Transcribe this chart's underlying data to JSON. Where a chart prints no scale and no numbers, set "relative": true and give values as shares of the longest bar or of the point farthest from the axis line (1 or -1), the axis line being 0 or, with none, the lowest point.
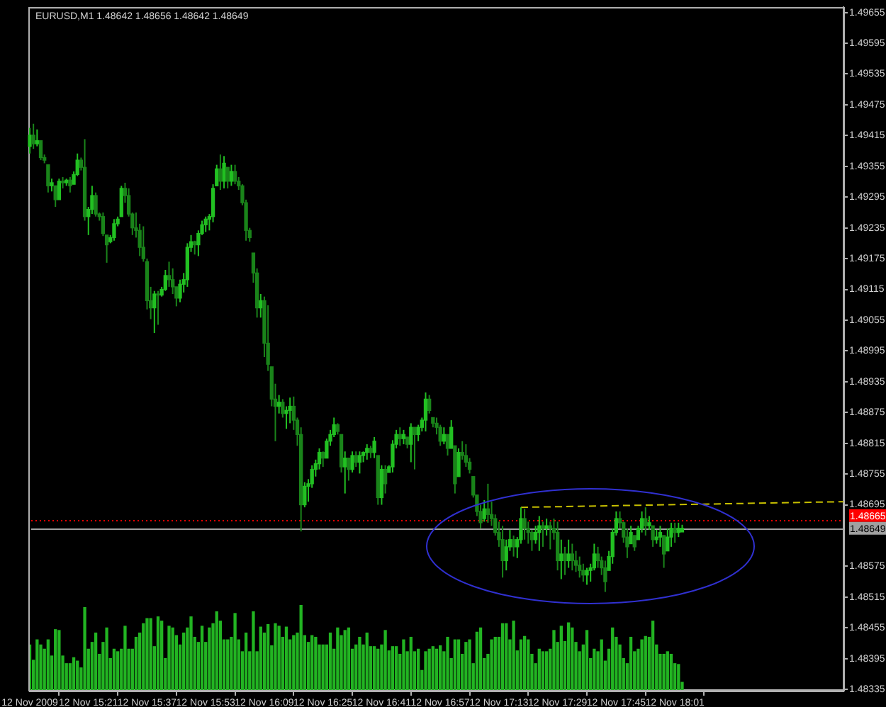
{
  "chart_data": [
    {
      "type": "candlestick",
      "title": "EURUSD,M1 1.48642 1.48656 1.48642 1.48649",
      "categories": [
        "12 Nov 2009",
        null,
        null,
        null,
        null,
        null,
        null,
        null,
        null,
        null,
        null,
        null,
        null,
        null,
        null,
        null,
        "12 Nov 15:21",
        null,
        null,
        null,
        null,
        null,
        null,
        null,
        null,
        null,
        null,
        null,
        null,
        null,
        null,
        null,
        "12 Nov 15:37",
        null,
        null,
        null,
        null,
        null,
        null,
        null,
        null,
        null,
        null,
        null,
        null,
        null,
        null,
        null,
        "12 Nov 15:53",
        null,
        null,
        null,
        null,
        null,
        null,
        null,
        null,
        null,
        null,
        null,
        null,
        null,
        null,
        null,
        "12 Nov 16:09",
        null,
        null,
        null,
        null,
        null,
        null,
        null,
        null,
        null,
        null,
        null,
        null,
        null,
        null,
        null,
        "12 Nov 16:25",
        null,
        null,
        null,
        null,
        null,
        null,
        null,
        null,
        null,
        null,
        null,
        null,
        null,
        null,
        null,
        "12 Nov 16:41",
        null,
        null,
        null,
        null,
        null,
        null,
        null,
        null,
        null,
        null,
        null,
        null,
        null,
        null,
        null,
        "12 Nov 16:57",
        null,
        null,
        null,
        null,
        null,
        null,
        null,
        null,
        null,
        null,
        null,
        null,
        null,
        null,
        null,
        "12 Nov 17:13",
        null,
        null,
        null,
        null,
        null,
        null,
        null,
        null,
        null,
        null,
        null,
        null,
        null,
        null,
        null,
        "12 Nov 17:29",
        null,
        null,
        null,
        null,
        null,
        null,
        null,
        null,
        null,
        null,
        null,
        null,
        null,
        null,
        null,
        "12 Nov 17:45",
        null,
        null,
        null,
        null,
        null,
        null,
        null,
        null,
        null,
        null,
        null,
        null,
        null,
        null,
        null,
        "12 Nov 18:01",
        null,
        null,
        null,
        null,
        null,
        null,
        null,
        null,
        null,
        null,
        null,
        null,
        null,
        null,
        null,
        null,
        null,
        null,
        null,
        null,
        null,
        null,
        null,
        null,
        null,
        null,
        null,
        null,
        null,
        null,
        null,
        null,
        null,
        null,
        null,
        null,
        null,
        null,
        null,
        null,
        null,
        null,
        null,
        null,
        null,
        null
      ],
      "ohlc": [
        [
          1.49394,
          1.4943,
          1.4938,
          1.49416
        ],
        [
          1.49416,
          1.49438,
          1.49389,
          1.49399
        ],
        [
          1.49399,
          1.49427,
          1.49394,
          1.49405
        ],
        [
          1.49405,
          1.49405,
          1.49367,
          1.49372
        ],
        [
          1.49372,
          1.49378,
          1.49361,
          1.49367
        ],
        [
          1.49358,
          1.49358,
          1.49304,
          1.49317
        ],
        [
          1.49317,
          1.49331,
          1.49306,
          1.49323
        ],
        [
          1.49317,
          1.49317,
          1.49276,
          1.4929
        ],
        [
          1.4929,
          1.49331,
          1.4929,
          1.49326
        ],
        [
          1.49326,
          1.49334,
          1.49312,
          1.49323
        ],
        [
          1.49323,
          1.49331,
          1.49317,
          1.49328
        ],
        [
          1.49328,
          1.49334,
          1.49304,
          1.49317
        ],
        [
          1.4932,
          1.49345,
          1.4932,
          1.49339
        ],
        [
          1.49339,
          1.4938,
          1.49336,
          1.49367
        ],
        [
          1.49367,
          1.49372,
          1.49347,
          1.49353
        ],
        [
          1.49353,
          1.49408,
          1.49249,
          1.49257
        ],
        [
          1.49257,
          1.49276,
          1.49221,
          1.49271
        ],
        [
          1.49271,
          1.49317,
          1.49262,
          1.49298
        ],
        [
          1.49298,
          1.49304,
          1.49257,
          1.49262
        ],
        [
          1.49262,
          1.49265,
          1.49249,
          1.49257
        ],
        [
          1.49257,
          1.49265,
          1.49219,
          1.49224
        ],
        [
          1.49221,
          1.49221,
          1.49167,
          1.49202
        ],
        [
          1.49208,
          1.49221,
          1.49205,
          1.49216
        ],
        [
          1.49216,
          1.49252,
          1.4921,
          1.49243
        ],
        [
          1.49243,
          1.49257,
          1.49238,
          1.49252
        ],
        [
          1.49257,
          1.49317,
          1.49257,
          1.49312
        ],
        [
          1.49312,
          1.49323,
          1.49284,
          1.49298
        ],
        [
          1.49298,
          1.49312,
          1.49257,
          1.49262
        ],
        [
          1.49262,
          1.49265,
          1.49221,
          1.49235
        ],
        [
          1.49235,
          1.49265,
          1.49216,
          1.4923
        ],
        [
          1.4923,
          1.49243,
          1.4918,
          1.49197
        ],
        [
          1.49197,
          1.49238,
          1.49169,
          1.49175
        ],
        [
          1.49169,
          1.49175,
          1.49076,
          1.49093
        ],
        [
          1.49093,
          1.4912,
          1.49057,
          1.49079
        ],
        [
          1.49079,
          1.49112,
          1.4903,
          1.49106
        ],
        [
          1.49106,
          1.49112,
          1.49046,
          1.49104
        ],
        [
          1.49104,
          1.4912,
          1.49101,
          1.49115
        ],
        [
          1.49115,
          1.49153,
          1.49112,
          1.49142
        ],
        [
          1.49142,
          1.49169,
          1.4912,
          1.49134
        ],
        [
          1.49134,
          1.49156,
          1.49106,
          1.4912
        ],
        [
          1.4912,
          1.4912,
          1.49082,
          1.49098
        ],
        [
          1.49098,
          1.49134,
          1.4909,
          1.49125
        ],
        [
          1.49125,
          1.49147,
          1.49109,
          1.49134
        ],
        [
          1.49134,
          1.49205,
          1.4912,
          1.49197
        ],
        [
          1.49197,
          1.49221,
          1.49188,
          1.49208
        ],
        [
          1.49208,
          1.4921,
          1.49183,
          1.49202
        ],
        [
          1.49202,
          1.4923,
          1.4918,
          1.49224
        ],
        [
          1.49224,
          1.49249,
          1.49221,
          1.49241
        ],
        [
          1.49241,
          1.49257,
          1.49227,
          1.49252
        ],
        [
          1.49252,
          1.49262,
          1.4923,
          1.49257
        ],
        [
          1.49257,
          1.4932,
          1.49246,
          1.49312
        ],
        [
          1.49317,
          1.49358,
          1.49317,
          1.4935
        ],
        [
          1.4935,
          1.49378,
          1.49309,
          1.49326
        ],
        [
          1.49326,
          1.49375,
          1.49312,
          1.49361
        ],
        [
          1.49353,
          1.49353,
          1.49312,
          1.49326
        ],
        [
          1.49326,
          1.49358,
          1.49317,
          1.49345
        ],
        [
          1.49345,
          1.49358,
          1.4932,
          1.49326
        ],
        [
          1.49326,
          1.49334,
          1.49309,
          1.49317
        ],
        [
          1.49317,
          1.4932,
          1.49279,
          1.49284
        ],
        [
          1.49284,
          1.4929,
          1.4921,
          1.4923
        ],
        [
          1.4923,
          1.49235,
          1.49208,
          1.49216
        ],
        [
          1.49186,
          1.49186,
          1.49128,
          1.49147
        ],
        [
          1.49147,
          1.49156,
          1.4906,
          1.49079
        ],
        [
          1.49079,
          1.49106,
          1.4906,
          1.49093
        ],
        [
          1.49093,
          1.49101,
          1.48983,
          1.4901
        ],
        [
          1.4901,
          1.49084,
          1.48956,
          1.48969
        ],
        [
          1.48964,
          1.48964,
          1.48887,
          1.48901
        ],
        [
          1.48901,
          1.48931,
          1.48819,
          1.48887
        ],
        [
          1.48887,
          1.48909,
          1.48873,
          1.48895
        ],
        [
          1.48895,
          1.48901,
          1.48865,
          1.48873
        ],
        [
          1.48873,
          1.48887,
          1.48843,
          1.48879
        ],
        [
          1.48879,
          1.48904,
          1.48854,
          1.48887
        ],
        [
          1.48887,
          1.48906,
          1.48841,
          1.4886
        ],
        [
          1.4886,
          1.48865,
          1.4881,
          1.48832
        ],
        [
          1.48832,
          1.48846,
          1.48643,
          1.48695
        ],
        [
          1.48695,
          1.48739,
          1.4869,
          1.48731
        ],
        [
          1.48731,
          1.48745,
          1.48701,
          1.48736
        ],
        [
          1.48736,
          1.48772,
          1.48728,
          1.48764
        ],
        [
          1.48764,
          1.48783,
          1.4875,
          1.48775
        ],
        [
          1.48775,
          1.48805,
          1.48764,
          1.48797
        ],
        [
          1.48797,
          1.48799,
          1.48769,
          1.48786
        ],
        [
          1.48786,
          1.48824,
          1.48786,
          1.48819
        ],
        [
          1.48819,
          1.48841,
          1.4881,
          1.48832
        ],
        [
          1.48832,
          1.48865,
          1.48827,
          1.48851
        ],
        [
          1.48851,
          1.48854,
          1.48832,
          1.48838
        ],
        [
          1.48832,
          1.48832,
          1.48758,
          1.48769
        ],
        [
          1.48769,
          1.48799,
          1.48717,
          1.48786
        ],
        [
          1.48786,
          1.48786,
          1.48742,
          1.48764
        ],
        [
          1.48764,
          1.48799,
          1.48758,
          1.48791
        ],
        [
          1.48791,
          1.48799,
          1.48769,
          1.48778
        ],
        [
          1.48778,
          1.48799,
          1.48756,
          1.48791
        ],
        [
          1.48791,
          1.48799,
          1.48778,
          1.48797
        ],
        [
          1.48797,
          1.48813,
          1.48783,
          1.48805
        ],
        [
          1.48805,
          1.4881,
          1.48786,
          1.48797
        ],
        [
          1.48797,
          1.48827,
          1.48786,
          1.48819
        ],
        [
          1.48791,
          1.48791,
          1.48695,
          1.48709
        ],
        [
          1.48709,
          1.48772,
          1.48695,
          1.48764
        ],
        [
          1.48764,
          1.48772,
          1.48717,
          1.48736
        ],
        [
          1.48758,
          1.48772,
          1.48758,
          1.48769
        ],
        [
          1.48769,
          1.48821,
          1.48758,
          1.48813
        ],
        [
          1.48813,
          1.48841,
          1.48805,
          1.48832
        ],
        [
          1.48832,
          1.48846,
          1.4881,
          1.48824
        ],
        [
          1.48824,
          1.48841,
          1.48813,
          1.48832
        ],
        [
          1.48827,
          1.48827,
          1.48805,
          1.48813
        ],
        [
          1.48813,
          1.48854,
          1.48778,
          1.48846
        ],
        [
          1.48846,
          1.48846,
          1.48764,
          1.48832
        ],
        [
          1.48832,
          1.48851,
          1.48819,
          1.48846
        ],
        [
          1.48846,
          1.48865,
          1.48838,
          1.4886
        ],
        [
          1.4886,
          1.48914,
          1.48838,
          1.48901
        ],
        [
          1.48901,
          1.48909,
          1.48873,
          1.48879
        ],
        [
          1.48865,
          1.48865,
          1.48846,
          1.48854
        ],
        [
          1.48854,
          1.48865,
          1.48832,
          1.48846
        ],
        [
          1.48846,
          1.48851,
          1.4881,
          1.48819
        ],
        [
          1.48819,
          1.48846,
          1.48813,
          1.48832
        ],
        [
          1.48832,
          1.48832,
          1.48791,
          1.48805
        ],
        [
          1.48805,
          1.4886,
          1.48805,
          1.48846
        ],
        [
          1.4881,
          1.4881,
          1.48717,
          1.48736
        ],
        [
          1.4875,
          1.48805,
          1.4875,
          1.48797
        ],
        [
          1.48797,
          1.48819,
          1.48783,
          1.48791
        ],
        [
          1.48791,
          1.48813,
          1.48769,
          1.48778
        ],
        [
          1.48778,
          1.48786,
          1.48756,
          1.48764
        ],
        [
          1.4875,
          1.4875,
          1.48709,
          1.48714
        ],
        [
          1.48714,
          1.48714,
          1.48673,
          1.48682
        ],
        [
          1.48682,
          1.48695,
          1.48649,
          1.4866
        ],
        [
          1.48668,
          1.48704,
          1.48662,
          1.48687
        ],
        [
          1.48687,
          1.48736,
          1.4866,
          1.48676
        ],
        [
          1.48676,
          1.48701,
          1.48654,
          1.48668
        ],
        [
          1.48668,
          1.48676,
          1.48635,
          1.48641
        ],
        [
          1.48641,
          1.48662,
          1.48613,
          1.48627
        ],
        [
          1.48627,
          1.48654,
          1.48553,
          1.48586
        ],
        [
          1.48586,
          1.48627,
          1.48567,
          1.48613
        ],
        [
          1.48613,
          1.48646,
          1.48605,
          1.48627
        ],
        [
          1.48627,
          1.48635,
          1.48594,
          1.48613
        ],
        [
          1.48613,
          1.48632,
          1.48591,
          1.48627
        ],
        [
          1.48627,
          1.4869,
          1.48619,
          1.48668
        ],
        [
          1.48668,
          1.48687,
          1.48627,
          1.48649
        ],
        [
          1.48649,
          1.48662,
          1.48619,
          1.48641
        ],
        [
          1.48641,
          1.48646,
          1.48605,
          1.48627
        ],
        [
          1.48627,
          1.48654,
          1.48619,
          1.48641
        ],
        [
          1.48641,
          1.48673,
          1.48605,
          1.48654
        ],
        [
          1.48654,
          1.48662,
          1.48613,
          1.48649
        ],
        [
          1.48649,
          1.48668,
          1.48635,
          1.48654
        ],
        [
          1.48654,
          1.48662,
          1.48608,
          1.48649
        ],
        [
          1.48649,
          1.48668,
          1.48627,
          1.48641
        ],
        [
          1.48641,
          1.48662,
          1.48567,
          1.48586
        ],
        [
          1.48586,
          1.48627,
          1.4855,
          1.48599
        ],
        [
          1.48599,
          1.48613,
          1.48558,
          1.48586
        ],
        [
          1.48586,
          1.48627,
          1.48572,
          1.48599
        ],
        [
          1.48599,
          1.48619,
          1.48567,
          1.48586
        ],
        [
          1.48586,
          1.48605,
          1.48564,
          1.48577
        ],
        [
          1.48577,
          1.48594,
          1.48553,
          1.48567
        ],
        [
          1.48567,
          1.4858,
          1.48545,
          1.48558
        ],
        [
          1.48558,
          1.48572,
          1.48539,
          1.48567
        ],
        [
          1.48567,
          1.4858,
          1.48545,
          1.48572
        ],
        [
          1.48572,
          1.48619,
          1.48567,
          1.48599
        ],
        [
          1.48599,
          1.48613,
          1.48572,
          1.48586
        ],
        [
          1.48586,
          1.48594,
          1.48558,
          1.48572
        ],
        [
          1.48572,
          1.48586,
          1.48525,
          1.48545
        ],
        [
          1.48567,
          1.48605,
          1.48567,
          1.48594
        ],
        [
          1.48594,
          1.48649,
          1.4858,
          1.48641
        ],
        [
          1.48641,
          1.48682,
          1.48635,
          1.48668
        ],
        [
          1.48668,
          1.48682,
          1.48649,
          1.4866
        ],
        [
          1.4866,
          1.48662,
          1.48621,
          1.48632
        ],
        [
          1.48632,
          1.48649,
          1.48591,
          1.48613
        ],
        [
          1.48619,
          1.48654,
          1.48619,
          1.48641
        ],
        [
          1.48635,
          1.48635,
          1.48605,
          1.48613
        ],
        [
          1.48627,
          1.48654,
          1.48627,
          1.48649
        ],
        [
          1.48649,
          1.48682,
          1.48641,
          1.48668
        ],
        [
          1.48668,
          1.4869,
          1.48635,
          1.48654
        ],
        [
          1.48654,
          1.48673,
          1.48646,
          1.4866
        ],
        [
          1.48654,
          1.48654,
          1.48613,
          1.48627
        ],
        [
          1.48627,
          1.48646,
          1.48619,
          1.48632
        ],
        [
          1.48632,
          1.48654,
          1.48613,
          1.48641
        ],
        [
          1.48635,
          1.48635,
          1.48572,
          1.48599
        ],
        [
          1.48605,
          1.48649,
          1.48605,
          1.48632
        ],
        [
          1.48632,
          1.4866,
          1.48613,
          1.48649
        ],
        [
          1.48649,
          1.4866,
          1.48621,
          1.48641
        ],
        [
          1.48641,
          1.4866,
          1.48632,
          1.48649
        ],
        [
          1.48642,
          1.48656,
          1.48642,
          1.48649
        ],
        null,
        null,
        null,
        null,
        null,
        null,
        null,
        null,
        null,
        null,
        null,
        null,
        null,
        null,
        null,
        null,
        null,
        null,
        null,
        null,
        null,
        null,
        null,
        null,
        null,
        null,
        null,
        null,
        null,
        null,
        null,
        null,
        null,
        null,
        null,
        null,
        null,
        null,
        null,
        null,
        null,
        null,
        null,
        null
      ],
      "colors": [
        "#22c022",
        "#1a841a",
        "#22c022",
        "#1a841a",
        "#1a841a",
        "#1a841a",
        "#22c022",
        "#1a841a",
        "#22c022",
        "#1a841a",
        "#22c022",
        "#1a841a",
        "#22c022",
        "#22c022",
        "#1a841a",
        "#1a841a",
        "#22c022",
        "#22c022",
        "#1a841a",
        "#1a841a",
        "#1a841a",
        "#1a841a",
        "#22c022",
        "#22c022",
        "#22c022",
        "#22c022",
        "#1a841a",
        "#1a841a",
        "#1a841a",
        "#1a841a",
        "#1a841a",
        "#1a841a",
        "#1a841a",
        "#1a841a",
        "#22c022",
        "#1a841a",
        "#22c022",
        "#22c022",
        "#1a841a",
        "#1a841a",
        "#1a841a",
        "#22c022",
        "#22c022",
        "#22c022",
        "#22c022",
        "#1a841a",
        "#22c022",
        "#22c022",
        "#22c022",
        "#22c022",
        "#22c022",
        "#22c022",
        "#1a841a",
        "#22c022",
        "#1a841a",
        "#22c022",
        "#1a841a",
        "#1a841a",
        "#1a841a",
        "#1a841a",
        "#1a841a",
        "#1a841a",
        "#1a841a",
        "#22c022",
        "#1a841a",
        "#1a841a",
        "#1a841a",
        "#1a841a",
        "#22c022",
        "#1a841a",
        "#22c022",
        "#22c022",
        "#1a841a",
        "#1a841a",
        "#1a841a",
        "#22c022",
        "#22c022",
        "#22c022",
        "#22c022",
        "#22c022",
        "#1a841a",
        "#22c022",
        "#22c022",
        "#22c022",
        "#1a841a",
        "#1a841a",
        "#22c022",
        "#1a841a",
        "#22c022",
        "#1a841a",
        "#22c022",
        "#22c022",
        "#22c022",
        "#1a841a",
        "#22c022",
        "#1a841a",
        "#22c022",
        "#1a841a",
        "#22c022",
        "#22c022",
        "#22c022",
        "#1a841a",
        "#22c022",
        "#1a841a",
        "#22c022",
        "#1a841a",
        "#22c022",
        "#22c022",
        "#22c022",
        "#1a841a",
        "#1a841a",
        "#1a841a",
        "#1a841a",
        "#22c022",
        "#1a841a",
        "#22c022",
        "#1a841a",
        "#22c022",
        "#1a841a",
        "#1a841a",
        "#1a841a",
        "#1a841a",
        "#1a841a",
        "#1a841a",
        "#22c022",
        "#1a841a",
        "#1a841a",
        "#1a841a",
        "#1a841a",
        "#1a841a",
        "#22c022",
        "#22c022",
        "#1a841a",
        "#22c022",
        "#22c022",
        "#1a841a",
        "#1a841a",
        "#1a841a",
        "#22c022",
        "#22c022",
        "#1a841a",
        "#22c022",
        "#1a841a",
        "#1a841a",
        "#1a841a",
        "#22c022",
        "#1a841a",
        "#22c022",
        "#1a841a",
        "#1a841a",
        "#1a841a",
        "#1a841a",
        "#22c022",
        "#22c022",
        "#22c022",
        "#1a841a",
        "#1a841a",
        "#1a841a",
        "#22c022",
        "#22c022",
        "#22c022",
        "#1a841a",
        "#1a841a",
        "#1a841a",
        "#22c022",
        "#1a841a",
        "#22c022",
        "#22c022",
        "#1a841a",
        "#22c022",
        "#1a841a",
        "#22c022",
        "#22c022",
        "#1a841a",
        "#22c022",
        "#22c022",
        "#1a841a",
        "#22c022",
        "#22c022",
        null,
        null,
        null,
        null,
        null,
        null,
        null,
        null,
        null,
        null,
        null,
        null,
        null,
        null,
        null,
        null,
        null,
        null,
        null,
        null,
        null,
        null,
        null,
        null,
        null,
        null,
        null,
        null,
        null,
        null,
        null,
        null,
        null,
        null,
        null,
        null,
        null,
        null,
        null,
        null,
        null,
        null,
        null,
        null
      ],
      "series": [
        {
          "type": "line",
          "color": "#c8c000",
          "line_style": "dashed",
          "values": [
            null,
            null,
            null,
            null,
            null,
            null,
            null,
            null,
            null,
            null,
            null,
            null,
            null,
            null,
            null,
            null,
            null,
            null,
            null,
            null,
            null,
            null,
            null,
            null,
            null,
            null,
            null,
            null,
            null,
            null,
            null,
            null,
            null,
            null,
            null,
            null,
            null,
            null,
            null,
            null,
            null,
            null,
            null,
            null,
            null,
            null,
            null,
            null,
            null,
            null,
            null,
            null,
            null,
            null,
            null,
            null,
            null,
            null,
            null,
            null,
            null,
            null,
            null,
            null,
            null,
            null,
            null,
            null,
            null,
            null,
            null,
            null,
            null,
            null,
            null,
            null,
            null,
            null,
            null,
            null,
            null,
            null,
            null,
            null,
            null,
            null,
            null,
            null,
            null,
            null,
            null,
            null,
            null,
            null,
            null,
            null,
            null,
            null,
            null,
            null,
            null,
            null,
            null,
            null,
            null,
            null,
            null,
            null,
            null,
            null,
            null,
            null,
            null,
            null,
            null,
            null,
            null,
            null,
            null,
            null,
            null,
            null,
            null,
            null,
            null,
            null,
            null,
            null,
            null,
            null,
            null,
            null,
            null,
            null,
            1.4869,
            null,
            null,
            null,
            null,
            null,
            null,
            null,
            null,
            null,
            null,
            null,
            null,
            null,
            null,
            null,
            null,
            null,
            null,
            null,
            null,
            null,
            null,
            null,
            null,
            null,
            null,
            null,
            null,
            null,
            null,
            null,
            null,
            null,
            null,
            null,
            null,
            null,
            null,
            null,
            null,
            null,
            null,
            null,
            null,
            null,
            null,
            null,
            null,
            null,
            null,
            null,
            null,
            null,
            null,
            null,
            null,
            null,
            null,
            null,
            null,
            null,
            null,
            null,
            null,
            null,
            null,
            null,
            null,
            null,
            null,
            null,
            null,
            null,
            null,
            null,
            null,
            null,
            null,
            null,
            null,
            null,
            null,
            null,
            null,
            null,
            null,
            null,
            1.48701
          ]
        }
      ],
      "ylim": [
        1.48331,
        1.49665
      ],
      "yticks": [
        1.48335,
        1.48395,
        1.48455,
        1.48515,
        1.48575,
        1.48695,
        1.48755,
        1.48815,
        1.48875,
        1.48935,
        1.48995,
        1.49055,
        1.49115,
        1.49175,
        1.49235,
        1.49295,
        1.49355,
        1.49415,
        1.49475,
        1.49535,
        1.49595,
        1.49655
      ],
      "ref_lines": [
        {
          "axis": "y",
          "value": 1.48665,
          "label": "1.48665",
          "color": "#ff0000",
          "line_style": "dotted"
        },
        {
          "axis": "y",
          "value": 1.48649,
          "label": "1.48649",
          "color": "#a0a0a0"
        }
      ]
    },
    {
      "type": "bar",
      "relative": true,
      "tick_labels": false,
      "color": "#22b422",
      "categories": [
        null,
        null,
        null,
        null,
        null,
        null,
        null,
        null,
        null,
        null,
        null,
        null,
        null,
        null,
        null,
        null,
        null,
        null,
        null,
        null,
        null,
        null,
        null,
        null,
        null,
        null,
        null,
        null,
        null,
        null,
        null,
        null,
        null,
        null,
        null,
        null,
        null,
        null,
        null,
        null,
        null,
        null,
        null,
        null,
        null,
        null,
        null,
        null,
        null,
        null,
        null,
        null,
        null,
        null,
        null,
        null,
        null,
        null,
        null,
        null,
        null,
        null,
        null,
        null,
        null,
        null,
        null,
        null,
        null,
        null,
        null,
        null,
        null,
        null,
        null,
        null,
        null,
        null,
        null,
        null,
        null,
        null,
        null,
        null,
        null,
        null,
        null,
        null,
        null,
        null,
        null,
        null,
        null,
        null,
        null,
        null,
        null,
        null,
        null,
        null,
        null,
        null,
        null,
        null,
        null,
        null,
        null,
        null,
        null,
        null,
        null,
        null,
        null,
        null,
        null,
        null,
        null,
        null,
        null,
        null,
        null,
        null,
        null,
        null,
        null,
        null,
        null,
        null,
        null,
        null,
        null,
        null,
        null,
        null,
        null,
        null,
        null,
        null,
        null,
        null,
        null,
        null,
        null,
        null,
        null,
        null,
        null,
        null,
        null,
        null,
        null,
        null,
        null,
        null,
        null,
        null,
        null,
        null,
        null,
        null,
        null,
        null,
        null,
        null,
        null,
        null,
        null,
        null,
        null,
        null,
        null,
        null,
        null,
        null,
        null,
        null,
        null,
        null,
        null,
        null,
        null,
        null,
        null,
        null,
        null,
        null,
        null,
        null,
        null,
        null,
        null,
        null,
        null,
        null,
        null,
        null,
        null,
        null,
        null,
        null,
        null,
        null,
        null,
        null,
        null,
        null,
        null,
        null,
        null,
        null,
        null,
        null,
        null,
        null,
        null,
        null,
        null,
        null,
        null,
        null,
        null,
        null,
        null
      ],
      "values": [
        0.53,
        0.35,
        0.59,
        0.53,
        0.48,
        0.59,
        0.4,
        0.71,
        0.7,
        0.4,
        0.31,
        0.31,
        0.38,
        0.34,
        0.26,
        0.97,
        0.48,
        0.56,
        0.67,
        0.42,
        0.56,
        0.73,
        0.37,
        0.48,
        0.45,
        0.48,
        0.75,
        0.48,
        0.48,
        0.62,
        0.67,
        0.78,
        0.84,
        0.84,
        0.51,
        0.86,
        0.81,
        0.37,
        0.75,
        0.73,
        0.64,
        0.53,
        0.67,
        0.73,
        0.86,
        0.62,
        0.56,
        0.75,
        0.56,
        0.73,
        0.78,
        0.92,
        0.81,
        0.59,
        0.59,
        0.62,
        0.9,
        0.59,
        0.45,
        0.67,
        0.45,
        0.92,
        0.45,
        0.74,
        0.67,
        0.77,
        0.52,
        0.78,
        0.75,
        0.62,
        0.74,
        0.59,
        0.64,
        0.67,
        1,
        0.64,
        0.56,
        0.64,
        0.62,
        0.53,
        0.53,
        0.53,
        0.67,
        0.48,
        0.73,
        0.64,
        0.7,
        0.73,
        0.48,
        0.53,
        0.62,
        0.53,
        0.67,
        0.51,
        0.51,
        0.48,
        0.53,
        0.7,
        0.46,
        0.51,
        0.51,
        0.42,
        0.59,
        0.45,
        0.62,
        0.45,
        0.48,
        0.23,
        0.45,
        0.48,
        0.51,
        0.48,
        0.52,
        0.45,
        0.62,
        0.37,
        0.59,
        0.59,
        0.42,
        0.56,
        0.59,
        0.31,
        0.68,
        0.73,
        0.37,
        0.42,
        0.59,
        0.62,
        0.62,
        0.78,
        0.78,
        0.59,
        0.81,
        0.46,
        0.59,
        0.63,
        0.59,
        0.42,
        0.31,
        0.48,
        0.45,
        0.45,
        0.48,
        0.7,
        0.56,
        0.75,
        0.57,
        0.79,
        0.73,
        0.56,
        0.45,
        0.53,
        0.7,
        0.37,
        0.48,
        0.45,
        0.59,
        0.34,
        0.48,
        0.73,
        0.62,
        0.53,
        0.37,
        0.31,
        0.62,
        0.45,
        0.48,
        0.59,
        0.63,
        0.62,
        0.81,
        0.53,
        0.42,
        0.42,
        0.45,
        0.42,
        0.31,
        0.3,
        0.09,
        null,
        null,
        null,
        null,
        null,
        null,
        null,
        null,
        null,
        null,
        null,
        null,
        null,
        null,
        null,
        null,
        null,
        null,
        null,
        null,
        null,
        null,
        null,
        null,
        null,
        null,
        null,
        null,
        null,
        null,
        null,
        null,
        null,
        null,
        null,
        null,
        null,
        null,
        null,
        null,
        null,
        null,
        null,
        null
      ]
    }
  ]
}
